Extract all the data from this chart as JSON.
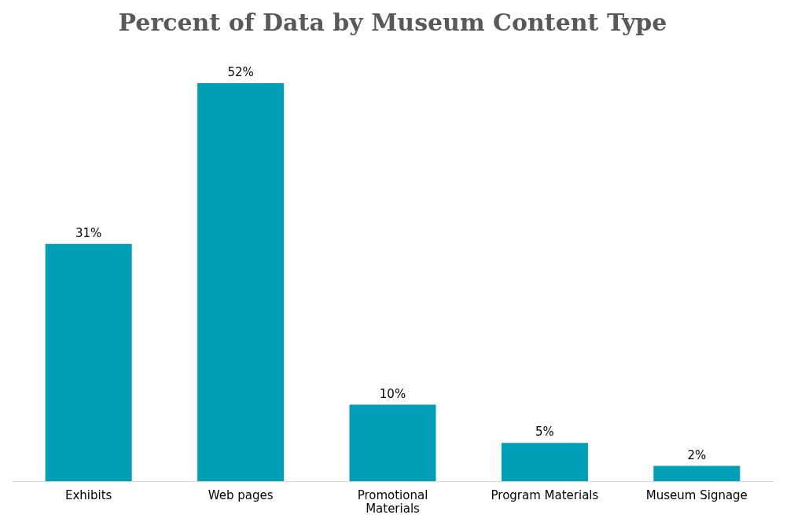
{
  "chart_data": {
    "type": "bar",
    "title": "Percent of Data by Museum Content Type",
    "categories": [
      "Exhibits",
      "Web pages",
      "Promotional Materials",
      "Program Materials",
      "Museum Signage"
    ],
    "values": [
      31,
      52,
      10,
      5,
      2
    ],
    "value_labels": [
      "31%",
      "52%",
      "10%",
      "5%",
      "2%"
    ],
    "color": "#009fb7"
  }
}
